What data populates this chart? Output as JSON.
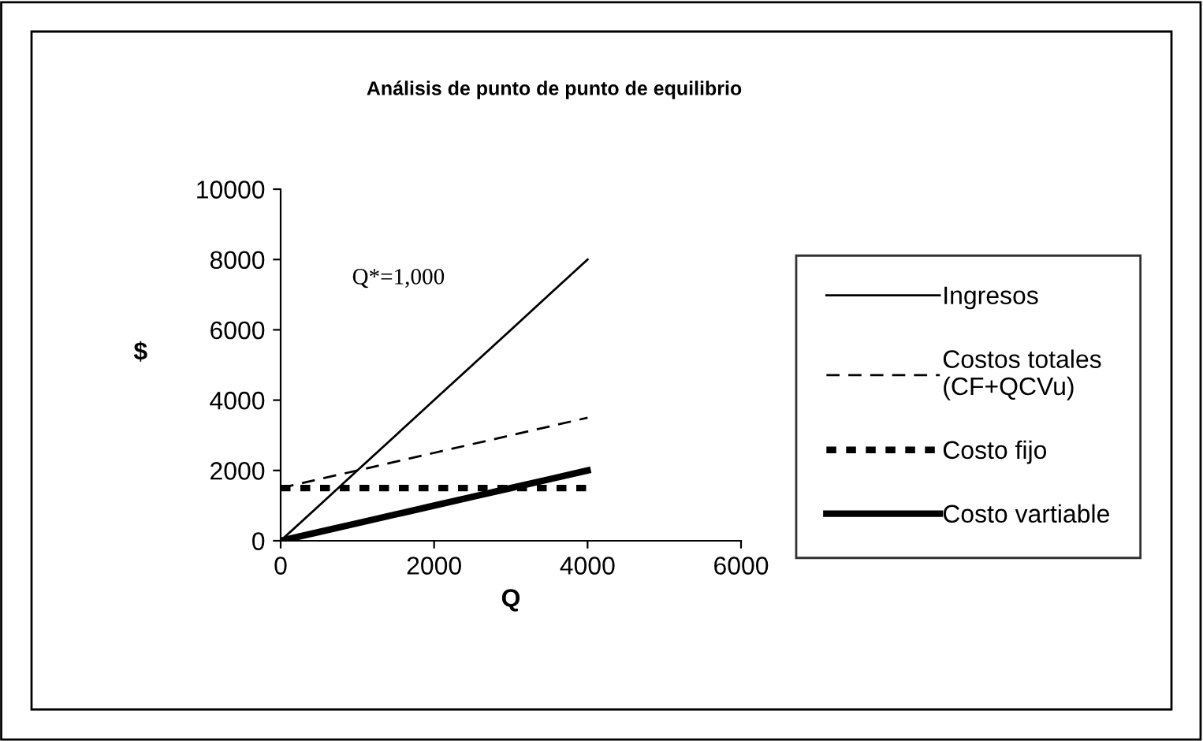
{
  "chart_data": {
    "type": "line",
    "title": "Análisis de punto de punto de equilibrio",
    "xlabel": "Q",
    "ylabel": "$",
    "x": [
      0,
      500,
      1000,
      1500,
      2000,
      2500,
      3000,
      3500,
      4000
    ],
    "series": [
      {
        "name": "Ingresos",
        "color": "#000000",
        "line_style": "solid",
        "values": [
          0,
          1000,
          2000,
          3000,
          4000,
          5000,
          6000,
          7000,
          8000
        ]
      },
      {
        "name": "Costos totales\n(CF+QCVu)",
        "color": "#000000",
        "line_style": "dashed",
        "values": [
          1500,
          1750,
          2000,
          2250,
          2500,
          2750,
          3000,
          3250,
          3500
        ]
      },
      {
        "name": "Costo fijo",
        "color": "#000000",
        "line_style": "dotted",
        "values": [
          1500,
          1500,
          1500,
          1500,
          1500,
          1500,
          1500,
          1500,
          1500
        ]
      },
      {
        "name": "Costo vartiable",
        "color": "#000000",
        "line_style": "solid",
        "values": [
          0,
          250,
          500,
          750,
          1000,
          1250,
          1500,
          1750,
          2000
        ]
      }
    ],
    "annotations": [
      "Q*=1,000"
    ],
    "xlim": [
      0,
      6000
    ],
    "xticks": [
      0,
      2000,
      4000,
      6000
    ],
    "ylim": [
      0,
      10000
    ],
    "yticks": [
      0,
      2000,
      4000,
      6000,
      8000,
      10000
    ],
    "grid": false,
    "legend": "right",
    "marker": "none"
  }
}
